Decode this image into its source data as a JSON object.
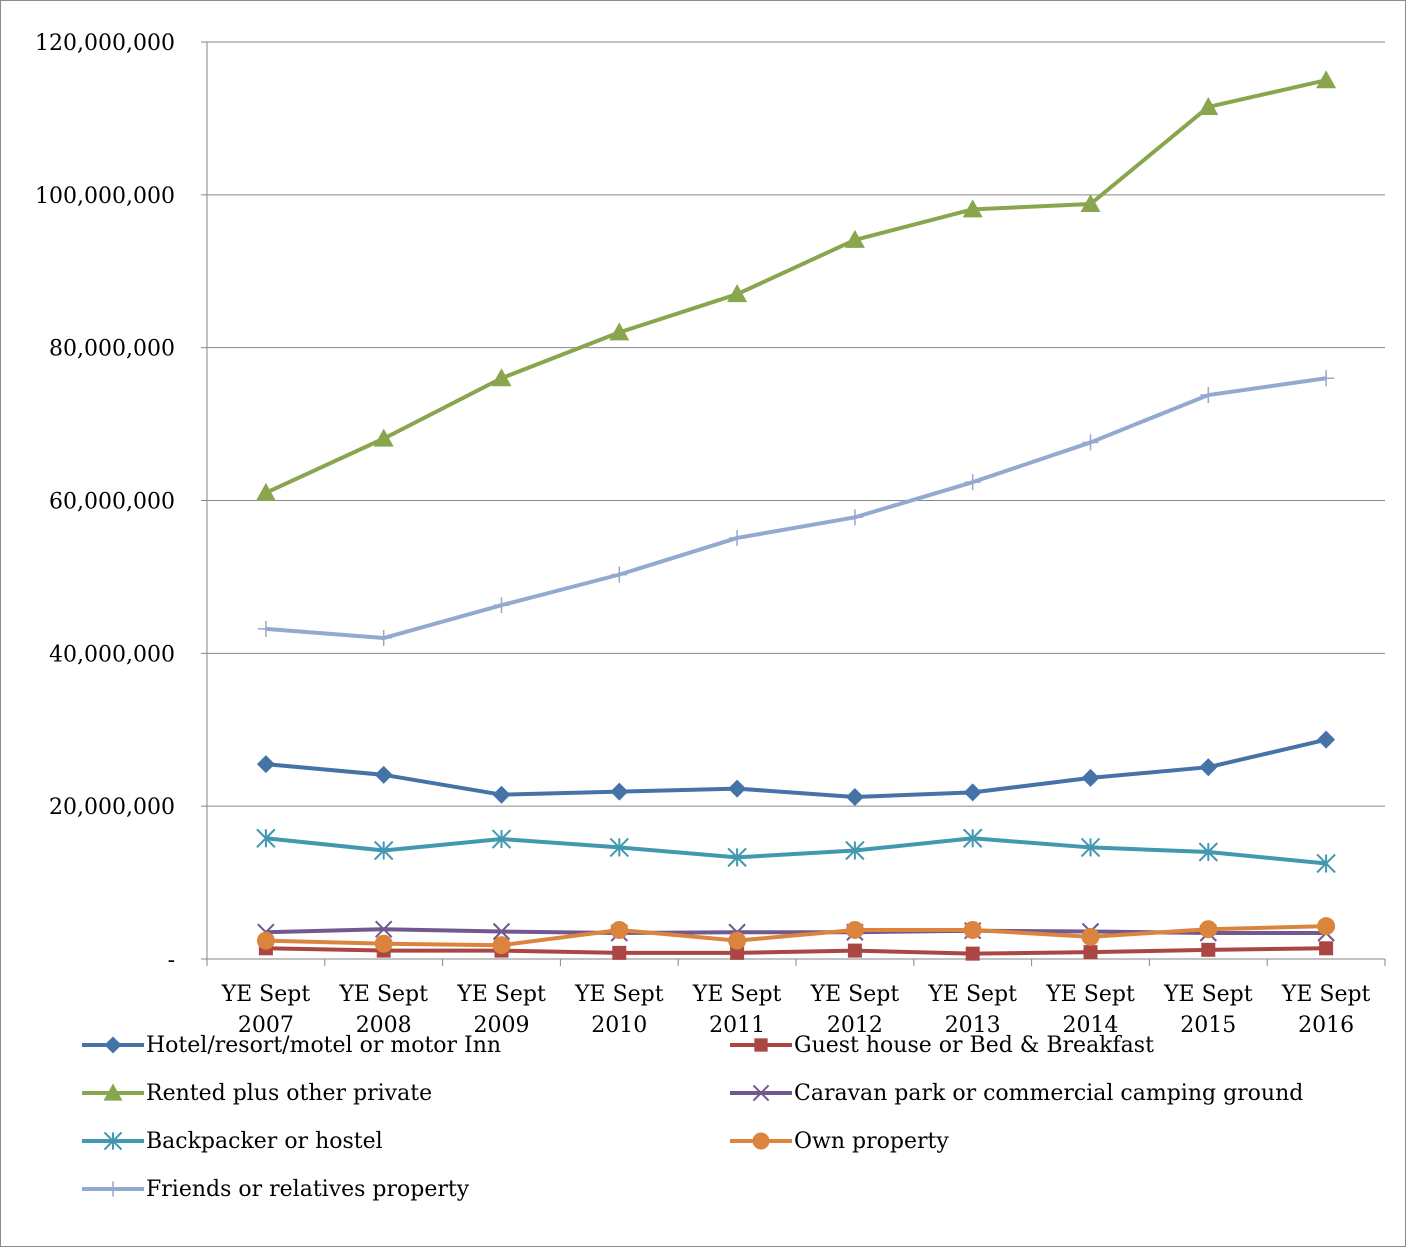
{
  "chart_data": {
    "type": "line",
    "title": "",
    "xlabel": "",
    "ylabel": "",
    "categories": [
      [
        "YE Sept",
        "2007"
      ],
      [
        "YE Sept",
        "2008"
      ],
      [
        "YE Sept",
        "2009"
      ],
      [
        "YE Sept",
        "2010"
      ],
      [
        "YE Sept",
        "2011"
      ],
      [
        "YE Sept",
        "2012"
      ],
      [
        "YE Sept",
        "2013"
      ],
      [
        "YE Sept",
        "2014"
      ],
      [
        "YE Sept",
        "2015"
      ],
      [
        "YE Sept",
        "2016"
      ]
    ],
    "ylim": [
      0,
      120000000
    ],
    "yticks": [
      0,
      20000000,
      40000000,
      60000000,
      80000000,
      100000000,
      120000000
    ],
    "ytick_labels": [
      "-",
      "20,000,000",
      "40,000,000",
      "60,000,000",
      "80,000,000",
      "100,000,000",
      "120,000,000"
    ],
    "grid": true,
    "legend_position": "bottom",
    "series": [
      {
        "name": "Hotel/resort/motel or motor Inn",
        "color": "#4572A7",
        "marker": "diamond",
        "values": [
          25500000,
          24100000,
          21500000,
          21900000,
          22300000,
          21200000,
          21800000,
          23700000,
          25100000,
          28700000
        ]
      },
      {
        "name": "Guest house or Bed & Breakfast",
        "color": "#AA4643",
        "marker": "square",
        "values": [
          1400000,
          1100000,
          1100000,
          800000,
          800000,
          1100000,
          700000,
          900000,
          1200000,
          1400000
        ]
      },
      {
        "name": "Rented plus other private",
        "color": "#89A54E",
        "marker": "triangle",
        "values": [
          61000000,
          68100000,
          76000000,
          82000000,
          87000000,
          94100000,
          98100000,
          98800000,
          111500000,
          115000000
        ]
      },
      {
        "name": "Caravan park or commercial camping ground",
        "color": "#71588F",
        "marker": "x",
        "values": [
          3500000,
          3900000,
          3600000,
          3400000,
          3500000,
          3500000,
          3700000,
          3600000,
          3400000,
          3400000
        ]
      },
      {
        "name": "Backpacker or hostel",
        "color": "#4198AF",
        "marker": "asterisk",
        "values": [
          15800000,
          14200000,
          15700000,
          14600000,
          13300000,
          14200000,
          15800000,
          14600000,
          14000000,
          12500000
        ]
      },
      {
        "name": "Own property",
        "color": "#DB843D",
        "marker": "circle",
        "values": [
          2400000,
          2000000,
          1800000,
          3800000,
          2400000,
          3800000,
          3800000,
          2900000,
          3900000,
          4300000
        ]
      },
      {
        "name": "Friends or relatives property",
        "color": "#93A9CF",
        "marker": "plus",
        "values": [
          43200000,
          42000000,
          46300000,
          50300000,
          55100000,
          57800000,
          62400000,
          67600000,
          73800000,
          76000000
        ]
      }
    ]
  }
}
